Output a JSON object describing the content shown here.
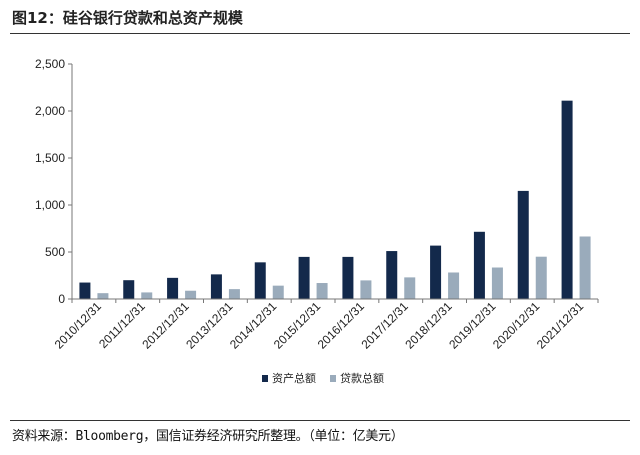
{
  "header": {
    "title": "图12：硅谷银行贷款和总资产规模"
  },
  "footer": {
    "source": "资料来源：Bloomberg，国信证券经济研究所整理。（单位：亿美元）"
  },
  "chart_data": {
    "type": "bar",
    "categories": [
      "2010/12/31",
      "2011/12/31",
      "2012/12/31",
      "2013/12/31",
      "2014/12/31",
      "2015/12/31",
      "2016/12/31",
      "2017/12/31",
      "2018/12/31",
      "2019/12/31",
      "2020/12/31",
      "2021/12/31"
    ],
    "series": [
      {
        "name": "资产总额",
        "color": "#13294b",
        "values": [
          175,
          200,
          225,
          262,
          390,
          448,
          448,
          510,
          568,
          715,
          1150,
          2110
        ]
      },
      {
        "name": "贷款总额",
        "color": "#9aabbb",
        "values": [
          62,
          70,
          88,
          105,
          142,
          170,
          198,
          230,
          282,
          335,
          450,
          665
        ]
      }
    ],
    "yticks": [
      "0",
      "500",
      "1,000",
      "1,500",
      "2,000",
      "2,500"
    ],
    "ylim": [
      0,
      2500
    ],
    "legend": "bottom"
  }
}
